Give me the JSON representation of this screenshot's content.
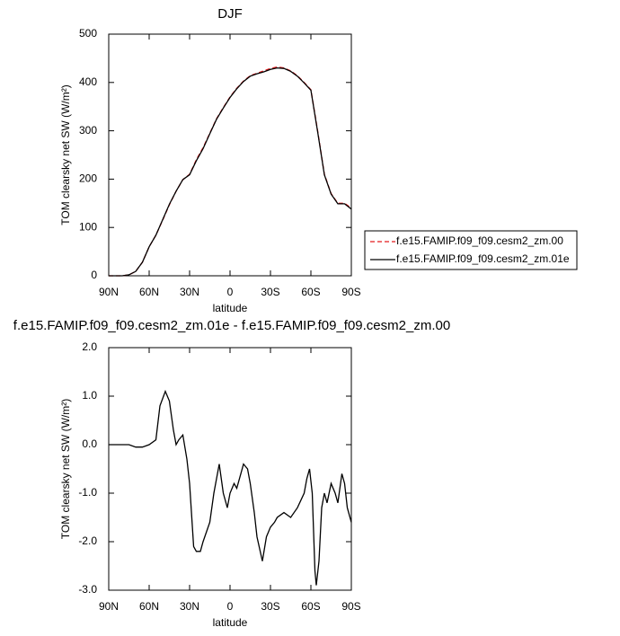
{
  "chart_data": [
    {
      "type": "line",
      "title": "DJF",
      "xlabel": "latitude",
      "ylabel": "TOM clearsky net SW (W/m²)",
      "x": [
        90,
        85,
        80,
        75,
        70,
        65,
        60,
        55,
        50,
        45,
        40,
        35,
        30,
        25,
        20,
        15,
        10,
        5,
        0,
        -5,
        -10,
        -15,
        -20,
        -25,
        -30,
        -35,
        -40,
        -45,
        -50,
        -55,
        -60,
        -65,
        -70,
        -75,
        -80,
        -85,
        -90
      ],
      "series": [
        {
          "name": "f.e15.FAMIP.f09_f09.cesm2_zm.00",
          "color": "#e41a1c",
          "linestyle": "dashed",
          "values": [
            0,
            0,
            0,
            2,
            9,
            28,
            60,
            84,
            115,
            147,
            175,
            199,
            210,
            240,
            265,
            295,
            325,
            348,
            370,
            388,
            403,
            414,
            419,
            424,
            429,
            432,
            430,
            424,
            414,
            400,
            385,
            300,
            210,
            170,
            150,
            150,
            140
          ]
        },
        {
          "name": "f.e15.FAMIP.f09_f09.cesm2_zm.01e",
          "color": "#000000",
          "linestyle": "solid",
          "values": [
            0,
            0,
            0,
            2,
            9,
            28,
            60,
            84,
            116,
            148,
            175,
            199,
            209,
            238,
            263,
            294,
            324,
            347,
            369,
            387,
            402,
            413,
            418,
            422,
            427,
            430,
            429,
            423,
            413,
            399,
            384,
            298,
            209,
            169,
            149,
            149,
            138
          ]
        }
      ],
      "xlim": [
        90,
        -90
      ],
      "ylim": [
        0,
        500
      ],
      "xticks": [
        {
          "value": 90,
          "label": "90N"
        },
        {
          "value": 60,
          "label": "60N"
        },
        {
          "value": 30,
          "label": "30N"
        },
        0,
        {
          "value": -30,
          "label": "30S"
        },
        {
          "value": -60,
          "label": "60S"
        },
        {
          "value": -90,
          "label": "90S"
        }
      ],
      "yticks": [
        0,
        100,
        200,
        300,
        400,
        500
      ],
      "legend": "right"
    },
    {
      "type": "line",
      "title": "f.e15.FAMIP.f09_f09.cesm2_zm.01e - f.e15.FAMIP.f09_f09.cesm2_zm.00",
      "xlabel": "latitude",
      "ylabel": "TOM clearsky net SW (W/m²)",
      "x": [
        90,
        85,
        80,
        75,
        70,
        65,
        60,
        55,
        52,
        48,
        45,
        42,
        40,
        38,
        35,
        32,
        30,
        27,
        25,
        22,
        20,
        15,
        12,
        10,
        8,
        5,
        2,
        0,
        -3,
        -5,
        -8,
        -10,
        -13,
        -15,
        -18,
        -20,
        -24,
        -27,
        -30,
        -33,
        -35,
        -40,
        -45,
        -50,
        -55,
        -57,
        -59,
        -61,
        -63,
        -64,
        -66,
        -68,
        -70,
        -72,
        -75,
        -78,
        -80,
        -83,
        -85,
        -87,
        -90
      ],
      "series": [
        {
          "name": "difference",
          "color": "#000000",
          "linestyle": "solid",
          "values": [
            0,
            0,
            0,
            0,
            -0.05,
            -0.05,
            0,
            0.1,
            0.8,
            1.1,
            0.9,
            0.3,
            0,
            0.1,
            0.2,
            -0.3,
            -0.8,
            -2.1,
            -2.2,
            -2.2,
            -2,
            -1.6,
            -1,
            -0.7,
            -0.4,
            -1,
            -1.3,
            -1,
            -0.8,
            -0.9,
            -0.6,
            -0.4,
            -0.5,
            -0.8,
            -1.4,
            -1.9,
            -2.4,
            -1.9,
            -1.7,
            -1.6,
            -1.5,
            -1.4,
            -1.5,
            -1.3,
            -1,
            -0.7,
            -0.5,
            -1,
            -2.6,
            -2.9,
            -2.4,
            -1.3,
            -1,
            -1.2,
            -0.8,
            -1,
            -1.2,
            -0.6,
            -0.8,
            -1.3,
            -1.6
          ]
        }
      ],
      "xlim": [
        90,
        -90
      ],
      "ylim": [
        -3,
        2
      ],
      "xticks": [
        {
          "value": 90,
          "label": "90N"
        },
        {
          "value": 60,
          "label": "60N"
        },
        {
          "value": 30,
          "label": "30N"
        },
        0,
        {
          "value": -30,
          "label": "30S"
        },
        {
          "value": -60,
          "label": "60S"
        },
        {
          "value": -90,
          "label": "90S"
        }
      ],
      "yticks": [
        {
          "value": -3,
          "label": "-3.0"
        },
        {
          "value": -2,
          "label": "-2.0"
        },
        {
          "value": -1,
          "label": "-1.0"
        },
        {
          "value": 0,
          "label": "0.0"
        },
        {
          "value": 1,
          "label": "1.0"
        },
        {
          "value": 2,
          "label": "2.0"
        }
      ]
    }
  ]
}
